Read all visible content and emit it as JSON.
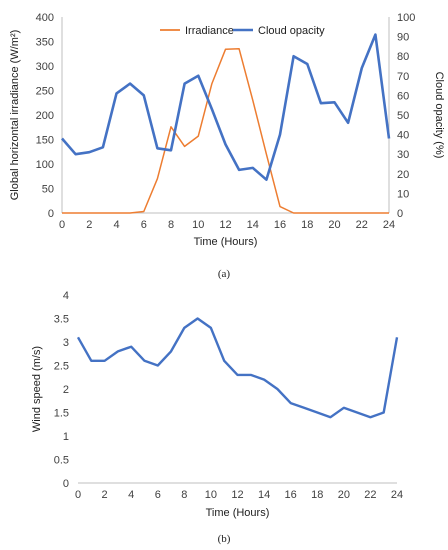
{
  "chart_data": [
    {
      "type": "line",
      "x": [
        0,
        1,
        2,
        3,
        4,
        5,
        6,
        7,
        8,
        9,
        10,
        11,
        12,
        13,
        14,
        15,
        16,
        17,
        18,
        19,
        20,
        21,
        22,
        23,
        24
      ],
      "xlabel": "Time (Hours)",
      "xticks": [
        0,
        2,
        4,
        6,
        8,
        10,
        12,
        14,
        16,
        18,
        20,
        22,
        24
      ],
      "xlim": [
        0,
        24
      ],
      "ylabel": "Global horizontal irradiance (W/m²)",
      "ylim": [
        0,
        400
      ],
      "yticks": [
        0,
        50,
        100,
        150,
        200,
        250,
        300,
        350,
        400
      ],
      "y2label": "Cloud opacity (%)",
      "y2lim": [
        0,
        100
      ],
      "y2ticks": [
        0,
        10,
        20,
        30,
        40,
        50,
        60,
        70,
        80,
        90,
        100
      ],
      "legend_position": "top",
      "caption": "(a)",
      "series": [
        {
          "name": "Irradiance",
          "axis": "left",
          "color": "#ED7D31",
          "values": [
            0,
            0,
            0,
            0,
            0,
            0,
            3,
            70,
            176,
            136,
            157,
            264,
            334,
            335,
            230,
            120,
            13,
            0,
            0,
            0,
            0,
            0,
            0,
            0,
            0
          ]
        },
        {
          "name": "Cloud opacity",
          "axis": "right",
          "color": "#4472C4",
          "values": [
            38,
            30,
            31,
            33.5,
            61,
            66,
            60,
            33,
            32,
            66,
            70,
            53,
            35,
            22,
            23,
            17,
            40,
            80,
            76,
            56,
            56.5,
            46,
            74,
            91,
            38
          ]
        }
      ]
    },
    {
      "type": "line",
      "x": [
        0,
        1,
        2,
        3,
        4,
        5,
        6,
        7,
        8,
        9,
        10,
        11,
        12,
        13,
        14,
        15,
        16,
        17,
        18,
        19,
        20,
        21,
        22,
        23,
        24
      ],
      "xlabel": "Time (Hours)",
      "xticks": [
        0,
        2,
        4,
        6,
        8,
        10,
        12,
        14,
        16,
        18,
        20,
        22,
        24
      ],
      "xlim": [
        0,
        24
      ],
      "ylabel": "Wind speed (m/s)",
      "ylim": [
        0,
        4
      ],
      "yticks": [
        "0",
        "0.5",
        "1",
        "1.5",
        "2",
        "2.5",
        "3",
        "3.5",
        "4"
      ],
      "caption": "(b)",
      "series": [
        {
          "axis": "left",
          "color": "#4472C4",
          "values": [
            3.1,
            2.6,
            2.6,
            2.8,
            2.9,
            2.6,
            2.5,
            2.8,
            3.3,
            3.5,
            3.3,
            2.6,
            2.3,
            2.3,
            2.2,
            2.0,
            1.7,
            1.6,
            1.5,
            1.4,
            1.6,
            1.5,
            1.4,
            1.5,
            3.1
          ]
        }
      ]
    }
  ]
}
